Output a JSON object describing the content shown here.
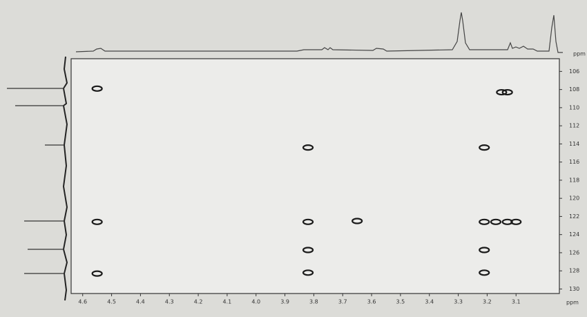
{
  "chart_data": {
    "type": "scatter",
    "x_label": "ppm",
    "y_label": "ppm",
    "xlim": [
      4.64,
      2.95
    ],
    "xticks": [
      4.6,
      4.5,
      4.4,
      4.3,
      4.2,
      4.1,
      {
        "value": 4,
        "label": "4.0"
      },
      3.9,
      3.8,
      3.7,
      3.6,
      3.5,
      3.4,
      3.3,
      3.2,
      3.1
    ],
    "ylim": [
      104.6,
      130.5
    ],
    "yticks": [
      106,
      108,
      110,
      112,
      114,
      116,
      118,
      120,
      122,
      124,
      126,
      128,
      130
    ],
    "grid": false,
    "series": [
      {
        "name": "cross peaks",
        "color": "#1a1a1a",
        "x": [
          4.55,
          4.55,
          4.55,
          3.82,
          3.82,
          3.82,
          3.82,
          3.65,
          3.21,
          3.21,
          3.17,
          3.13,
          3.1,
          3.21,
          3.21,
          3.15,
          3.13
        ],
        "values": [
          107.9,
          122.6,
          128.3,
          114.4,
          122.6,
          125.7,
          128.2,
          122.5,
          114.4,
          122.6,
          122.6,
          122.6,
          122.6,
          125.7,
          128.2,
          108.3,
          108.3
        ]
      }
    ]
  }
}
